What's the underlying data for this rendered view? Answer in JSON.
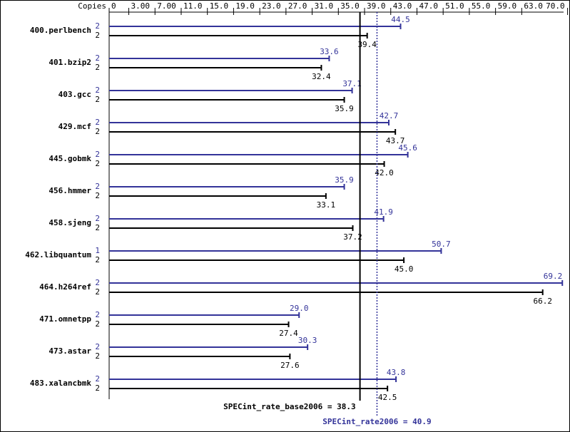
{
  "chart_data": {
    "type": "bar",
    "orientation": "horizontal",
    "copies_header": "Copies",
    "categories": [
      "400.perlbench",
      "401.bzip2",
      "403.gcc",
      "429.mcf",
      "445.gobmk",
      "456.hmmer",
      "458.sjeng",
      "462.libquantum",
      "464.h264ref",
      "471.omnetpp",
      "473.astar",
      "483.xalancbmk"
    ],
    "series": [
      {
        "color": "#333399",
        "copies": [
          2,
          2,
          2,
          2,
          2,
          2,
          2,
          1,
          2,
          2,
          2,
          2
        ],
        "values": [
          44.5,
          33.6,
          37.1,
          42.7,
          45.6,
          35.9,
          41.9,
          50.7,
          69.2,
          29.0,
          30.3,
          43.8
        ],
        "value_labels": [
          "44.5",
          "33.6",
          "37.1",
          "42.7",
          "45.6",
          "35.9",
          "41.9",
          "50.7",
          "69.2",
          "29.0",
          "30.3",
          "43.8"
        ]
      },
      {
        "color": "#000000",
        "copies": [
          2,
          2,
          2,
          2,
          2,
          2,
          2,
          2,
          2,
          2,
          2,
          2
        ],
        "values": [
          39.4,
          32.4,
          35.9,
          43.7,
          42.0,
          33.1,
          37.2,
          45.0,
          66.2,
          27.4,
          27.6,
          42.5
        ],
        "value_labels": [
          "39.4",
          "32.4",
          "35.9",
          "43.7",
          "42.0",
          "33.1",
          "37.2",
          "45.0",
          "66.2",
          "27.4",
          "27.6",
          "42.5"
        ]
      }
    ],
    "xlim": [
      0,
      70
    ],
    "xticks": [
      0,
      {
        "value": 3,
        "label": "3.00"
      },
      {
        "value": 7,
        "label": "7.00"
      },
      {
        "value": 11,
        "label": "11.0"
      },
      {
        "value": 15,
        "label": "15.0"
      },
      {
        "value": 19,
        "label": "19.0"
      },
      {
        "value": 23,
        "label": "23.0"
      },
      {
        "value": 27,
        "label": "27.0"
      },
      {
        "value": 31,
        "label": "31.0"
      },
      {
        "value": 35,
        "label": "35.0"
      },
      {
        "value": 39,
        "label": "39.0"
      },
      {
        "value": 43,
        "label": "43.0"
      },
      {
        "value": 47,
        "label": "47.0"
      },
      {
        "value": 51,
        "label": "51.0"
      },
      {
        "value": 55,
        "label": "55.0"
      },
      {
        "value": 59,
        "label": "59.0"
      },
      {
        "value": 63,
        "label": "63.0"
      },
      {
        "value": 70,
        "label": "70.0"
      }
    ],
    "reference_lines": [
      {
        "label": "SPECint_rate_base2006 =",
        "value": 38.3,
        "value_label": "38.3",
        "color": "#000000",
        "style": "solid"
      },
      {
        "label": "SPECint_rate2006 =",
        "value": 40.9,
        "value_label": "40.9",
        "color": "#333399",
        "style": "dotted"
      }
    ]
  }
}
